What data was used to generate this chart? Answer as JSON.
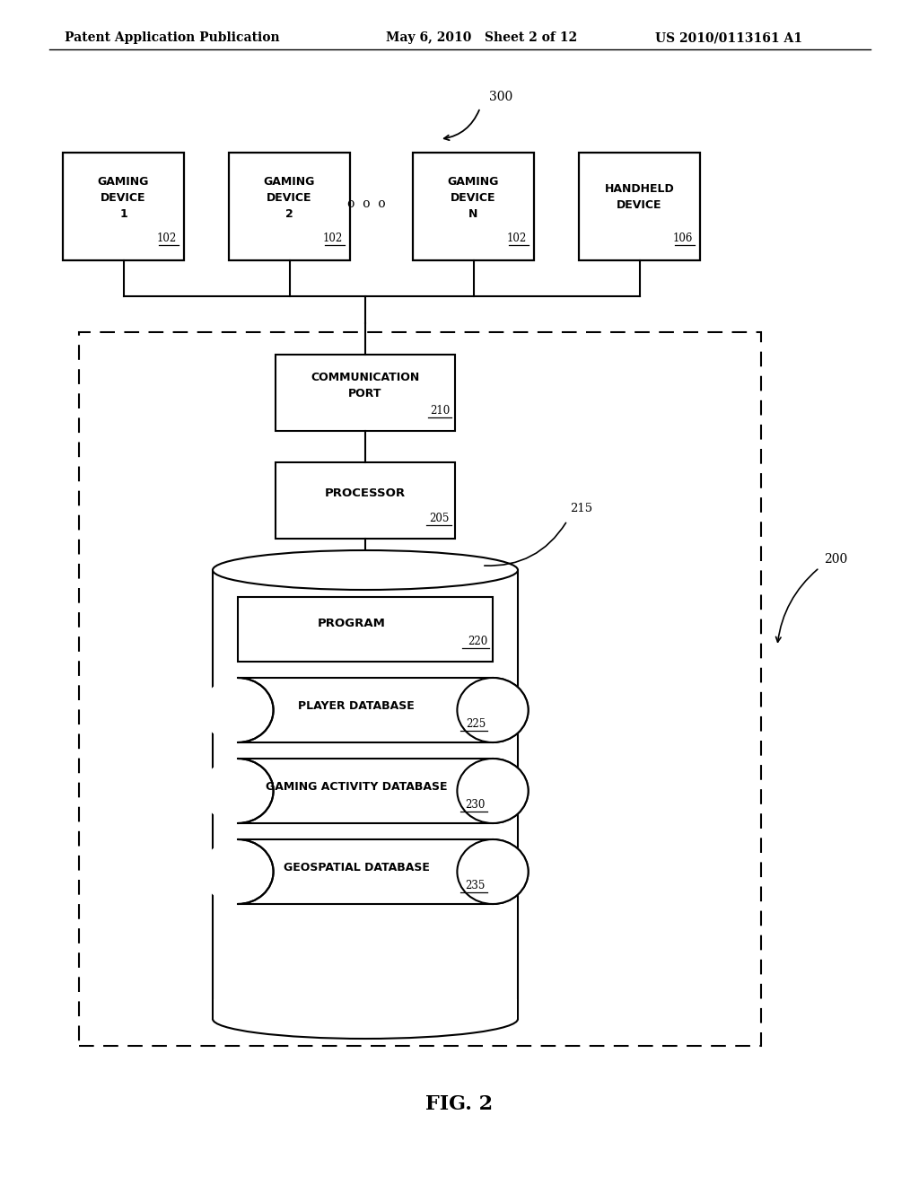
{
  "bg_color": "#ffffff",
  "header_left": "Patent Application Publication",
  "header_mid": "May 6, 2010   Sheet 2 of 12",
  "header_right": "US 2010/0113161 A1",
  "fig_label": "FIG. 2"
}
